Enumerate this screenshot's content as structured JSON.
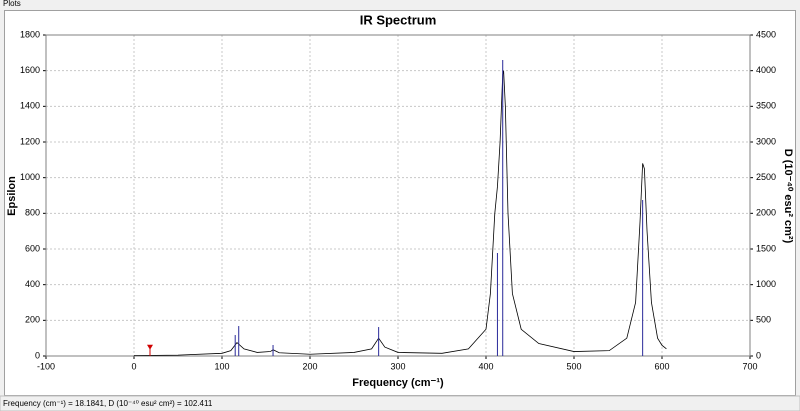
{
  "window_title": "Plots",
  "chart_data": {
    "type": "line",
    "title": "IR Spectrum",
    "xlabel": "Frequency (cm⁻¹)",
    "ylabel": "Epsilon",
    "y2label": "D (10⁻⁴⁰ esu² cm²)",
    "xlim": [
      -100,
      700
    ],
    "xticks": [
      -100,
      0,
      100,
      200,
      300,
      400,
      500,
      600,
      700
    ],
    "ylim": [
      0,
      1800
    ],
    "yticks": [
      0,
      200,
      400,
      600,
      800,
      1000,
      1200,
      1400,
      1600,
      1800
    ],
    "y2lim": [
      0,
      4500
    ],
    "y2ticks": [
      0,
      500,
      1000,
      1500,
      2000,
      2500,
      3000,
      3500,
      4000,
      4500
    ],
    "grid": true,
    "series": [
      {
        "color": "#000000",
        "style": "line",
        "axis": "y",
        "x": [
          0,
          50,
          100,
          110,
          117,
          125,
          140,
          155,
          158,
          165,
          200,
          250,
          270,
          278,
          285,
          300,
          350,
          380,
          400,
          405,
          410,
          413,
          416,
          419,
          420,
          422,
          425,
          430,
          440,
          460,
          500,
          540,
          560,
          570,
          575,
          578,
          580,
          583,
          588,
          595,
          600,
          605
        ],
        "values": [
          2,
          5,
          15,
          30,
          75,
          40,
          20,
          25,
          35,
          18,
          10,
          20,
          40,
          100,
          50,
          20,
          15,
          40,
          150,
          350,
          800,
          950,
          1200,
          1580,
          1600,
          1400,
          800,
          350,
          150,
          70,
          25,
          30,
          100,
          300,
          750,
          1080,
          1050,
          700,
          300,
          100,
          60,
          40
        ]
      },
      {
        "color": "#2a2a9a",
        "style": "stick",
        "axis": "y2",
        "x": [
          115,
          119,
          158,
          278,
          413,
          419,
          578
        ],
        "values": [
          294,
          420,
          154,
          406,
          1444,
          4150,
          2187
        ]
      }
    ],
    "cursor": {
      "color": "#d00000",
      "x_label": "Frequency (cm⁻¹) = ",
      "x": 18.1841,
      "y_label": ", D (10⁻⁴⁰ esu² cm²) = ",
      "y": 102.411
    }
  }
}
